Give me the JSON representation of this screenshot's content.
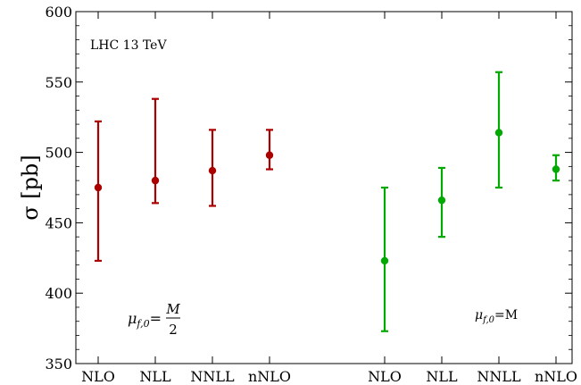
{
  "chart_data": {
    "type": "scatter",
    "ylabel": "σ [pb]",
    "ylim": [
      350,
      600
    ],
    "yticks": [
      350,
      400,
      450,
      500,
      550,
      600
    ],
    "grid": false,
    "annotation": "LHC 13 TeV",
    "groups": [
      {
        "color": "#aa0000",
        "scale_label": {
          "mu": "μ",
          "sub": "f,0",
          "eq": "=",
          "num": "M",
          "den": "2"
        },
        "points": [
          {
            "label": "NLO",
            "y": 475,
            "low": 423,
            "high": 522
          },
          {
            "label": "NLL",
            "y": 480,
            "low": 464,
            "high": 538
          },
          {
            "label": "NNLL",
            "y": 487,
            "low": 462,
            "high": 516
          },
          {
            "label": "nNLO",
            "y": 498,
            "low": 488,
            "high": 516
          }
        ]
      },
      {
        "color": "#00aa00",
        "scale_label": {
          "mu": "μ",
          "sub": "f,0",
          "eq": "=M"
        },
        "points": [
          {
            "label": "NLO",
            "y": 423,
            "low": 373,
            "high": 475
          },
          {
            "label": "NLL",
            "y": 466,
            "low": 440,
            "high": 489
          },
          {
            "label": "NNLL",
            "y": 514,
            "low": 475,
            "high": 557
          },
          {
            "label": "nNLO",
            "y": 488,
            "low": 480,
            "high": 498
          }
        ]
      }
    ]
  }
}
